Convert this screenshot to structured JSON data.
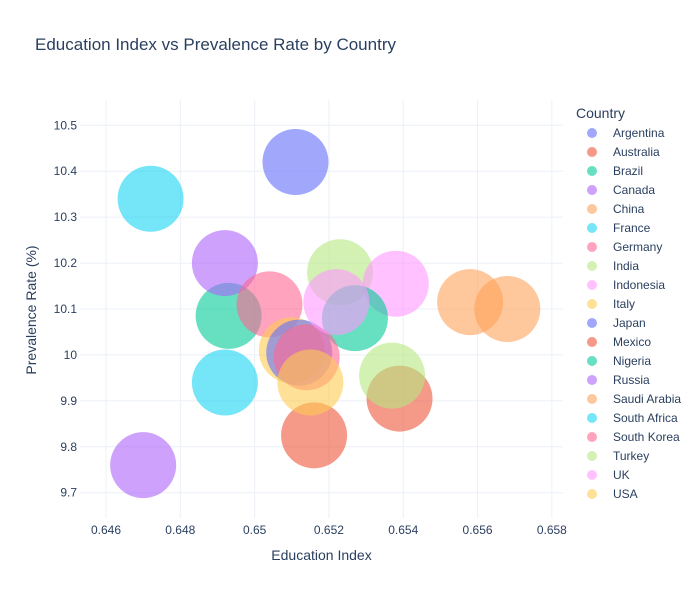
{
  "chart_data": {
    "type": "scatter",
    "title": "Education Index vs Prevalence Rate by Country",
    "xlabel": "Education Index",
    "ylabel": "Prevalence Rate (%)",
    "xlim": [
      0.6453,
      0.6583
    ],
    "ylim": [
      9.645,
      10.555
    ],
    "x_ticks": [
      0.646,
      0.648,
      0.65,
      0.652,
      0.654,
      0.656,
      0.658
    ],
    "x_tick_labels": [
      "0.646",
      "0.648",
      "0.65",
      "0.652",
      "0.654",
      "0.656",
      "0.658"
    ],
    "y_ticks": [
      9.7,
      9.8,
      9.9,
      10,
      10.1,
      10.2,
      10.3,
      10.4,
      10.5
    ],
    "y_tick_labels": [
      "9.7",
      "9.8",
      "9.9",
      "10",
      "10.1",
      "10.2",
      "10.3",
      "10.4",
      "10.5"
    ],
    "grid": true,
    "legend_title": "Country",
    "legend_position": "right",
    "series": [
      {
        "name": "Argentina",
        "color": "#636efa",
        "points": [
          [
            0.6511,
            10.42
          ]
        ]
      },
      {
        "name": "Australia",
        "color": "#ef553b",
        "points": [
          [
            0.6516,
            9.825
          ]
        ]
      },
      {
        "name": "Brazil",
        "color": "#00cc96",
        "points": [
          [
            0.6493,
            10.085
          ]
        ]
      },
      {
        "name": "Canada",
        "color": "#ab63fa",
        "points": [
          [
            0.6492,
            10.2
          ]
        ]
      },
      {
        "name": "China",
        "color": "#ffa15a",
        "points": [
          [
            0.6558,
            10.115
          ]
        ]
      },
      {
        "name": "France",
        "color": "#19d3f3",
        "points": [
          [
            0.6472,
            10.34
          ]
        ]
      },
      {
        "name": "Germany",
        "color": "#ff6692",
        "points": [
          [
            0.6504,
            10.11
          ]
        ]
      },
      {
        "name": "India",
        "color": "#b6e880",
        "points": [
          [
            0.6523,
            10.18
          ]
        ]
      },
      {
        "name": "Indonesia",
        "color": "#ff97ff",
        "points": [
          [
            0.6538,
            10.155
          ]
        ]
      },
      {
        "name": "Italy",
        "color": "#fecb52",
        "points": [
          [
            0.651,
            10.01
          ]
        ]
      },
      {
        "name": "Japan",
        "color": "#636efa",
        "points": [
          [
            0.6512,
            10.005
          ]
        ]
      },
      {
        "name": "Mexico",
        "color": "#ef553b",
        "points": [
          [
            0.6539,
            9.905
          ]
        ]
      },
      {
        "name": "Nigeria",
        "color": "#00cc96",
        "points": [
          [
            0.6527,
            10.08
          ]
        ]
      },
      {
        "name": "Russia",
        "color": "#ab63fa",
        "points": [
          [
            0.647,
            9.76
          ]
        ]
      },
      {
        "name": "Saudi Arabia",
        "color": "#ffa15a",
        "points": [
          [
            0.6568,
            10.1
          ]
        ]
      },
      {
        "name": "South Africa",
        "color": "#19d3f3",
        "points": [
          [
            0.6492,
            9.94
          ]
        ]
      },
      {
        "name": "South Korea",
        "color": "#ff6692",
        "points": [
          [
            0.6514,
            9.995
          ]
        ]
      },
      {
        "name": "Turkey",
        "color": "#b6e880",
        "points": [
          [
            0.6537,
            9.955
          ]
        ]
      },
      {
        "name": "UK",
        "color": "#ff97ff",
        "points": [
          [
            0.6522,
            10.115
          ]
        ]
      },
      {
        "name": "USA",
        "color": "#fecb52",
        "points": [
          [
            0.6515,
            9.94
          ]
        ]
      }
    ]
  }
}
